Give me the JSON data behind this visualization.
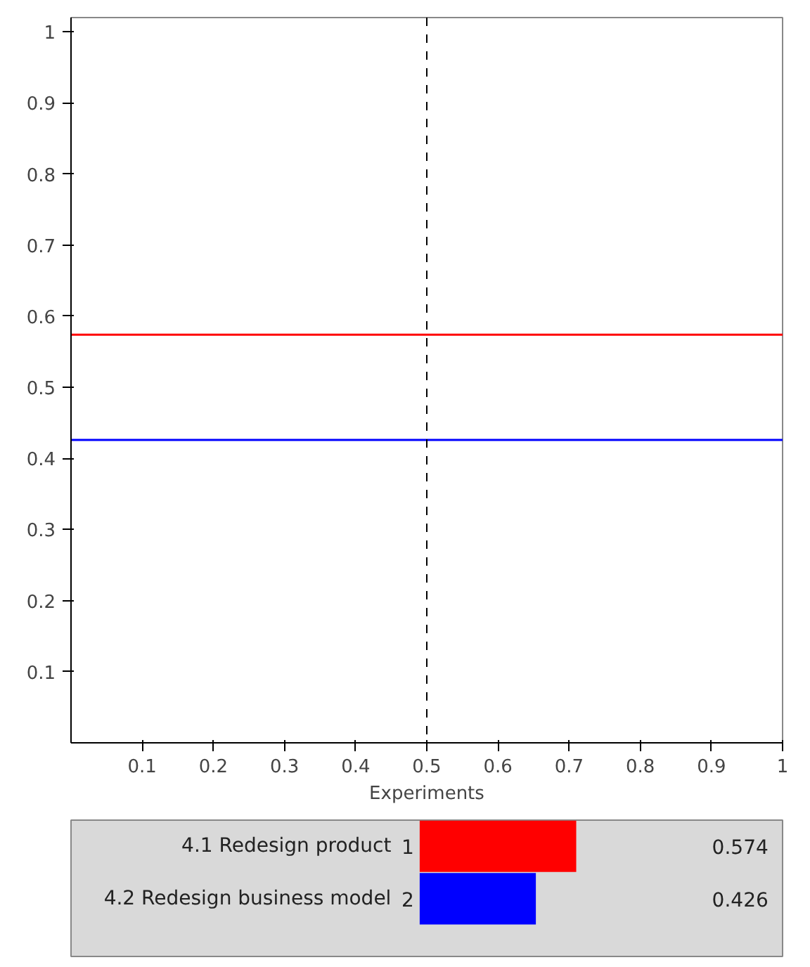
{
  "chart_data": [
    {
      "type": "line",
      "xlabel": "Experiments",
      "x": [
        0,
        1
      ],
      "series": [
        {
          "color": "#ff0000",
          "values": [
            0.574,
            0.574
          ]
        },
        {
          "color": "#0000ff",
          "values": [
            0.426,
            0.426
          ]
        }
      ],
      "xlim": [
        0,
        1
      ],
      "ylim": [
        0,
        1.02
      ],
      "xticks": [
        0.1,
        0.2,
        0.3,
        0.4,
        0.5,
        0.6,
        0.7,
        0.8,
        0.9,
        1
      ],
      "yticks": [
        0.1,
        0.2,
        0.3,
        0.4,
        0.5,
        0.6,
        0.7,
        0.8,
        0.9,
        1
      ],
      "ref_lines": [
        {
          "axis": "x",
          "value": 0.5,
          "color": "#000000",
          "line_style": "dashed"
        }
      ],
      "grid": false,
      "line_style": "solid",
      "marker": "none"
    },
    {
      "type": "bar",
      "orientation": "horizontal",
      "categories": [
        "4.1 Redesign product",
        "4.2 Redesign business model"
      ],
      "values": [
        0.574,
        0.426
      ],
      "colors": [
        "#ff0000",
        "#0000ff"
      ],
      "data_labels": true,
      "annotations": [
        "1",
        "2"
      ]
    }
  ]
}
